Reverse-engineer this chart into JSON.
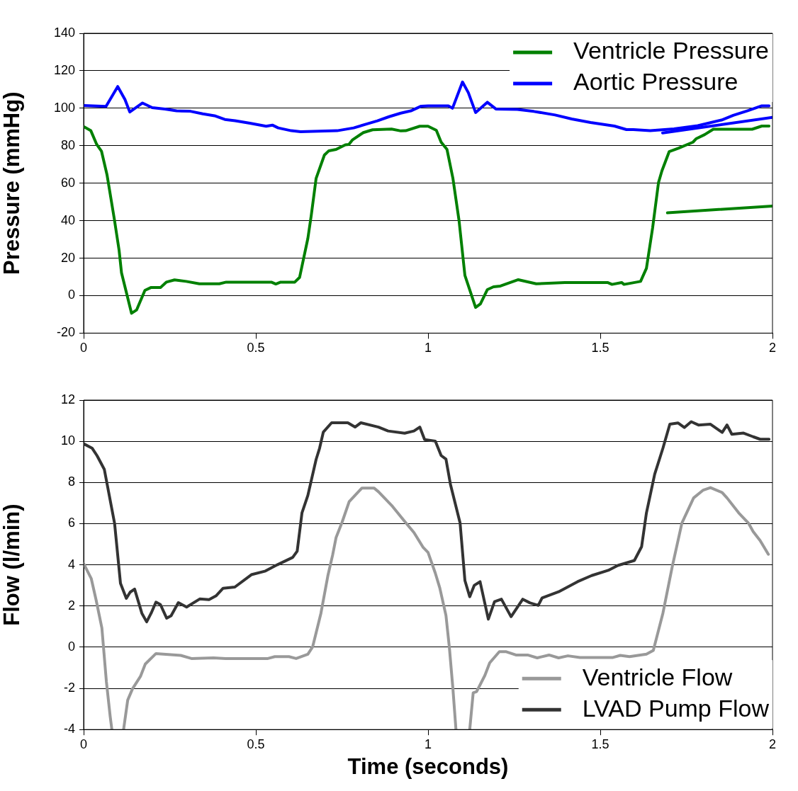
{
  "chart_data": [
    {
      "type": "line",
      "ylabel": "Pressure (mmHg)",
      "xlim": [
        0,
        2
      ],
      "xticks": [
        0,
        0.5,
        1,
        1.5,
        2
      ],
      "ylim": [
        -20,
        140
      ],
      "yticks": [
        -20,
        0,
        20,
        40,
        60,
        80,
        100,
        120,
        140
      ],
      "grid": "y",
      "legend": "top right",
      "series": [
        {
          "name": "Ventricle Pressure",
          "color": "#008000",
          "x": [
            0,
            0.021,
            0.038,
            0.052,
            0.068,
            0.089,
            0.103,
            0.11,
            0.139,
            0.154,
            0.178,
            0.195,
            0.223,
            0.24,
            0.264,
            0.298,
            0.336,
            0.394,
            0.414,
            0.545,
            0.558,
            0.572,
            0.613,
            0.627,
            0.651,
            0.661,
            0.675,
            0.699,
            0.712,
            0.733,
            0.76,
            0.77,
            0.781,
            0.812,
            0.839,
            0.894,
            0.921,
            0.935,
            0.976,
            1.0,
            1.024,
            1.038,
            1.055,
            1.072,
            1.09,
            1.107,
            1.138,
            1.152,
            1.172,
            1.19,
            1.21,
            1.262,
            1.314,
            1.397,
            1.521,
            1.534,
            1.562,
            1.569,
            1.617,
            1.634,
            1.652,
            1.669,
            1.679,
            1.7,
            1.728,
            1.769,
            1.779,
            1.803,
            1.828,
            1.869,
            1.941,
            1.969,
            1.99
          ],
          "values": [
            90.2,
            88,
            80.7,
            77,
            64.4,
            41,
            24.2,
            12.2,
            -9.4,
            -7.6,
            2.8,
            4.3,
            4.3,
            7.2,
            8.4,
            7.6,
            6.3,
            6.3,
            7.2,
            7.2,
            6.2,
            7.2,
            7.2,
            9.7,
            30.5,
            43,
            62.6,
            75,
            77.3,
            78,
            80.5,
            80.7,
            83.2,
            87,
            88.5,
            88.9,
            87.9,
            88,
            90.4,
            90.4,
            88.2,
            81.9,
            78,
            62.8,
            40,
            10.8,
            -6.3,
            -4.4,
            3.2,
            4.7,
            5.1,
            8.5,
            6.3,
            7,
            7,
            6,
            7,
            6,
            7.6,
            14.6,
            36.2,
            60.3,
            66.6,
            76.8,
            78.7,
            81.9,
            83.8,
            85.9,
            88.8,
            88.8,
            88.8,
            90.5,
            90.5
          ]
        },
        {
          "type": "line",
          "color": "#0000ff",
          "x": [
            1.681,
            2
          ],
          "values": [
            86.8,
            95.1
          ]
        },
        {
          "type": "line",
          "color": "#008000",
          "x": [
            1.695,
            2
          ],
          "values": [
            44.2,
            47.8
          ]
        },
        {
          "name": "Aortic Pressure",
          "color": "#0000ff",
          "x": [
            0,
            0.065,
            0.099,
            0.12,
            0.134,
            0.171,
            0.199,
            0.236,
            0.27,
            0.31,
            0.346,
            0.38,
            0.41,
            0.44,
            0.483,
            0.53,
            0.548,
            0.565,
            0.603,
            0.63,
            0.736,
            0.784,
            0.818,
            0.853,
            0.887,
            0.921,
            0.95,
            0.98,
            1.0,
            1.059,
            1.071,
            1.1,
            1.117,
            1.138,
            1.172,
            1.197,
            1.259,
            1.307,
            1.369,
            1.417,
            1.472,
            1.541,
            1.576,
            1.596,
            1.645,
            1.714,
            1.783,
            1.852,
            1.886,
            1.928,
            1.969,
            1.99
          ],
          "values": [
            101.5,
            101,
            111.6,
            104.7,
            98,
            102.8,
            100.3,
            99.6,
            98.6,
            98.4,
            97,
            96,
            94,
            93.3,
            92,
            90.4,
            91,
            89.5,
            88,
            87.5,
            88,
            89.5,
            91.4,
            93.3,
            95.5,
            97.4,
            98.6,
            101.1,
            101.3,
            101.3,
            100,
            114,
            108.3,
            97.7,
            103.2,
            99.6,
            99.4,
            98.3,
            96.4,
            94.3,
            92.4,
            90.5,
            88.6,
            88.6,
            88,
            89,
            90.7,
            93.7,
            96.2,
            98.7,
            101.3,
            101.3
          ]
        }
      ]
    },
    {
      "type": "line",
      "xlabel": "Time (seconds)",
      "ylabel": "Flow (l/min)",
      "xlim": [
        0,
        2
      ],
      "xticks": [
        0,
        0.5,
        1,
        1.5,
        2
      ],
      "ylim": [
        -4,
        12
      ],
      "yticks": [
        -4,
        -2,
        0,
        2,
        4,
        6,
        8,
        10,
        12
      ],
      "grid": "y",
      "legend": "bottom right",
      "series": [
        {
          "name": "Ventricle Flow",
          "color": "#999999",
          "x": [
            0,
            0.022,
            0.036,
            0.053,
            0.066,
            0.077,
            0.082,
            0.1,
            0.116,
            0.128,
            0.142,
            0.165,
            0.179,
            0.21,
            0.282,
            0.313,
            0.377,
            0.412,
            0.535,
            0.555,
            0.596,
            0.617,
            0.651,
            0.665,
            0.689,
            0.709,
            0.723,
            0.733,
            0.75,
            0.771,
            0.808,
            0.843,
            0.856,
            0.894,
            0.932,
            0.959,
            0.986,
            1.0,
            1.021,
            1.034,
            1.052,
            1.062,
            1.072,
            1.081,
            1.1,
            1.121,
            1.131,
            1.141,
            1.165,
            1.179,
            1.207,
            1.227,
            1.255,
            1.289,
            1.317,
            1.351,
            1.379,
            1.406,
            1.441,
            1.537,
            1.558,
            1.585,
            1.634,
            1.654,
            1.682,
            1.709,
            1.737,
            1.771,
            1.799,
            1.82,
            1.854,
            1.868,
            1.902,
            1.93,
            1.944,
            1.964,
            1.988
          ],
          "values": [
            4.06,
            3.34,
            2.31,
            0.93,
            -1.66,
            -3.35,
            -4,
            null,
            -4,
            -2.57,
            -2.02,
            -1.42,
            -0.82,
            -0.31,
            -0.4,
            -0.55,
            -0.52,
            -0.55,
            -0.55,
            -0.46,
            -0.46,
            -0.55,
            -0.34,
            0.02,
            1.65,
            3.46,
            4.48,
            5.33,
            6.05,
            7.07,
            7.73,
            7.73,
            7.55,
            6.89,
            6.11,
            5.57,
            4.84,
            4.6,
            3.6,
            2.88,
            1.54,
            -0.04,
            -1.98,
            -4,
            null,
            -4,
            -2.22,
            -2.16,
            -1.37,
            -0.76,
            -0.22,
            -0.22,
            -0.38,
            -0.38,
            -0.52,
            -0.38,
            -0.52,
            -0.42,
            -0.5,
            -0.5,
            -0.4,
            -0.46,
            -0.34,
            -0.16,
            1.66,
            3.91,
            6.03,
            7.25,
            7.63,
            7.75,
            7.51,
            7.25,
            6.52,
            6.03,
            5.61,
            5.18,
            4.51
          ]
        },
        {
          "name": "LVAD Pump Flow",
          "color": "#333333",
          "x": [
            0,
            0.025,
            0.039,
            0.06,
            0.073,
            0.09,
            0.107,
            0.124,
            0.135,
            0.148,
            0.169,
            0.183,
            0.196,
            0.21,
            0.223,
            0.241,
            0.254,
            0.275,
            0.299,
            0.337,
            0.364,
            0.384,
            0.405,
            0.439,
            0.487,
            0.528,
            0.562,
            0.607,
            0.62,
            0.634,
            0.651,
            0.675,
            0.685,
            0.696,
            0.72,
            0.767,
            0.788,
            0.805,
            0.856,
            0.884,
            0.932,
            0.959,
            0.976,
            0.99,
            1.021,
            1.038,
            1.052,
            1.065,
            1.093,
            1.107,
            1.121,
            1.134,
            1.151,
            1.175,
            1.193,
            1.213,
            1.241,
            1.275,
            1.296,
            1.32,
            1.331,
            1.379,
            1.434,
            1.475,
            1.523,
            1.551,
            1.599,
            1.62,
            1.634,
            1.658,
            1.682,
            1.702,
            1.726,
            1.744,
            1.764,
            1.785,
            1.82,
            1.854,
            1.868,
            1.882,
            1.916,
            1.944,
            1.964,
            1.99
          ],
          "values": [
            9.88,
            9.66,
            9.3,
            8.64,
            7.5,
            6,
            3.1,
            2.37,
            2.67,
            2.82,
            1.65,
            1.23,
            1.65,
            2.19,
            2.07,
            1.41,
            1.53,
            2.16,
            1.95,
            2.34,
            2.31,
            2.49,
            2.86,
            2.92,
            3.52,
            3.7,
            4,
            4.36,
            4.66,
            6.53,
            7.37,
            9.12,
            9.66,
            10.45,
            10.9,
            10.9,
            10.69,
            10.9,
            10.69,
            10.5,
            10.39,
            10.5,
            10.69,
            10.08,
            10.01,
            9.31,
            9.13,
            7.91,
            6.03,
            3.24,
            2.45,
            3,
            3.18,
            1.36,
            2.21,
            2.33,
            1.48,
            2.33,
            2.15,
            2.03,
            2.39,
            2.69,
            3.18,
            3.48,
            3.73,
            3.97,
            4.21,
            4.88,
            6.52,
            8.4,
            9.67,
            10.83,
            10.89,
            10.67,
            10.95,
            10.79,
            10.83,
            10.43,
            10.79,
            10.34,
            10.4,
            10.22,
            10.1,
            10.1
          ]
        }
      ]
    }
  ]
}
